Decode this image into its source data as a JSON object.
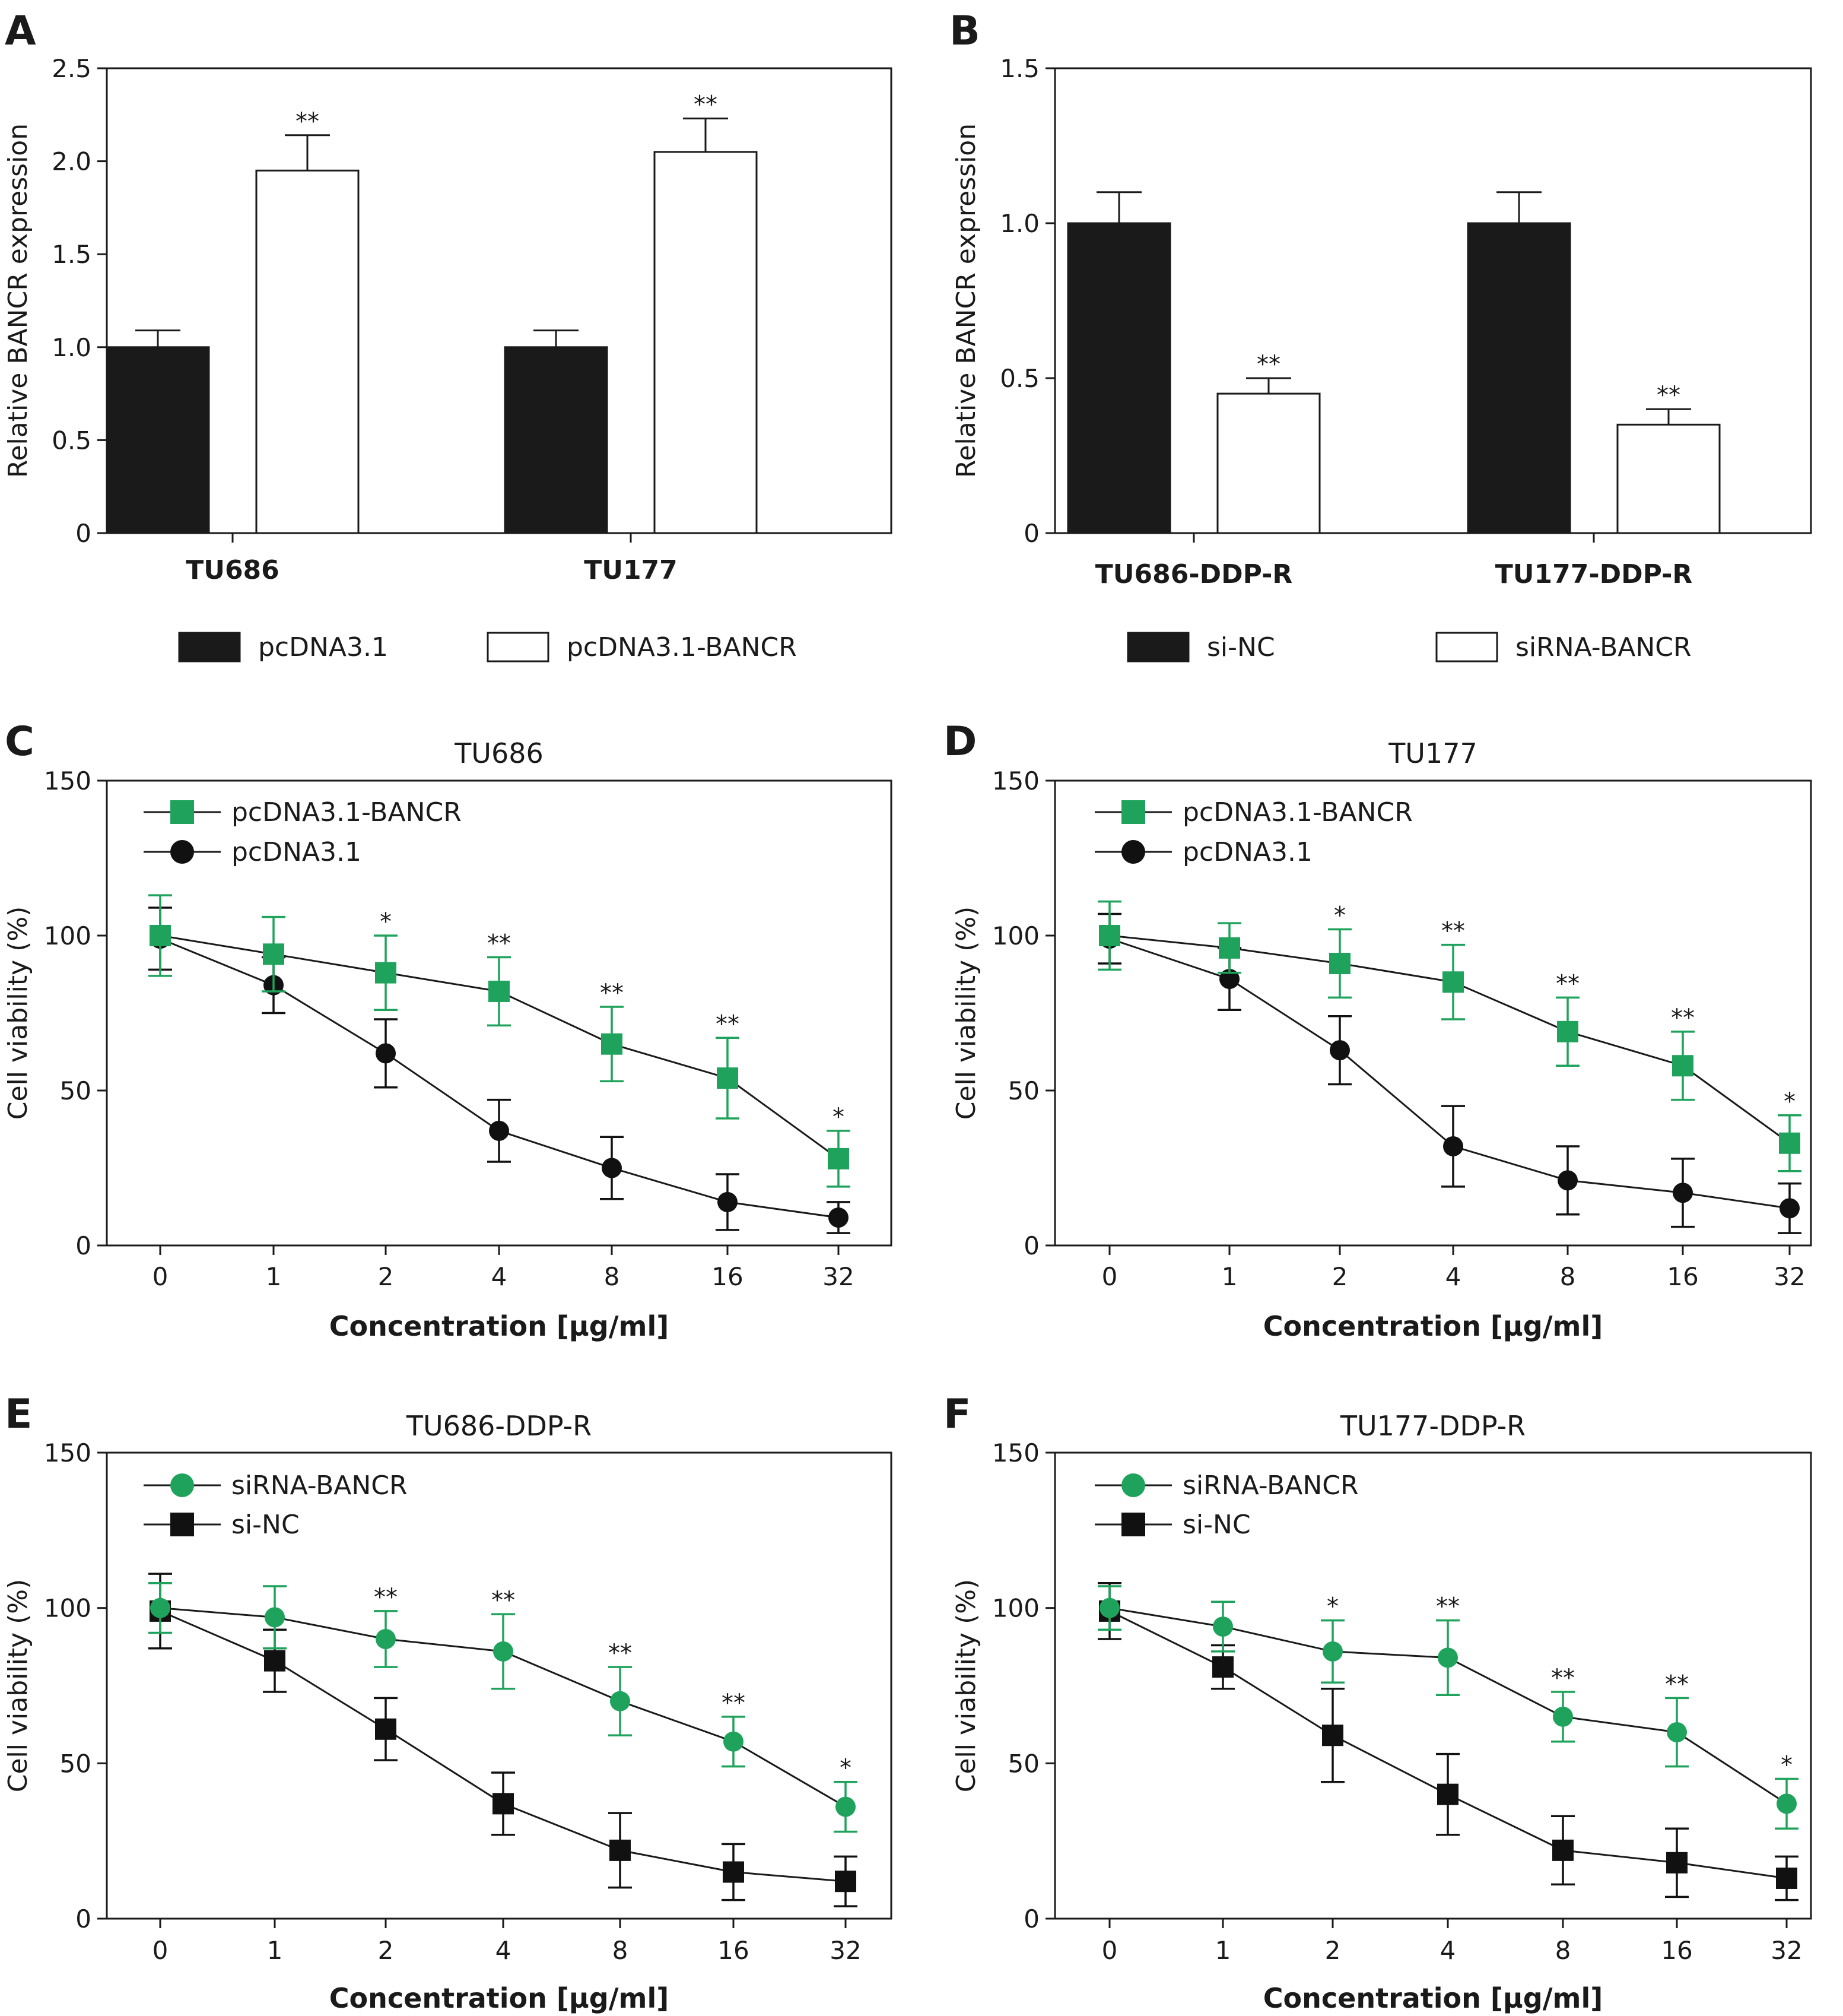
{
  "chart_data": [
    {
      "id": "A",
      "type": "bar",
      "panel_letter": "A",
      "title": "",
      "xlabel": "",
      "ylabel": "Relative BANCR expression",
      "ylim": [
        0,
        2.5
      ],
      "yticks": [
        0,
        0.5,
        1.0,
        1.5,
        2.0,
        2.5
      ],
      "ytick_labels": [
        "0",
        "0.5",
        "1.0",
        "1.5",
        "2.0",
        "2.5"
      ],
      "categories": [
        "TU686",
        "TU177"
      ],
      "series": [
        {
          "name": "pcDNA3.1",
          "color": "#1a1a1a",
          "values": [
            1.0,
            1.0
          ],
          "errors": [
            0.09,
            0.09
          ],
          "sig": [
            "",
            ""
          ]
        },
        {
          "name": "pcDNA3.1-BANCR",
          "color": "#ffffff",
          "values": [
            1.95,
            2.05
          ],
          "errors": [
            0.19,
            0.18
          ],
          "sig": [
            "**",
            "**"
          ]
        }
      ],
      "legend_position": "bottom"
    },
    {
      "id": "B",
      "type": "bar",
      "panel_letter": "B",
      "title": "",
      "xlabel": "",
      "ylabel": "Relative BANCR expression",
      "ylim": [
        0,
        1.5
      ],
      "yticks": [
        0,
        0.5,
        1.0,
        1.5
      ],
      "ytick_labels": [
        "0",
        "0.5",
        "1.0",
        "1.5"
      ],
      "categories": [
        "TU686-DDP-R",
        "TU177-DDP-R"
      ],
      "series": [
        {
          "name": "si-NC",
          "color": "#1a1a1a",
          "values": [
            1.0,
            1.0
          ],
          "errors": [
            0.1,
            0.1
          ],
          "sig": [
            "",
            ""
          ]
        },
        {
          "name": "siRNA-BANCR",
          "color": "#ffffff",
          "values": [
            0.45,
            0.35
          ],
          "errors": [
            0.05,
            0.05
          ],
          "sig": [
            "**",
            "**"
          ]
        }
      ],
      "legend_position": "bottom"
    },
    {
      "id": "C",
      "type": "line",
      "panel_letter": "C",
      "title": "TU686",
      "xlabel": "Concentration [μg/ml]",
      "ylabel": "Cell viability (%)",
      "ylim": [
        0,
        150
      ],
      "yticks": [
        0,
        50,
        100,
        150
      ],
      "x": [
        "0",
        "1",
        "2",
        "4",
        "8",
        "16",
        "32"
      ],
      "series": [
        {
          "name": "pcDNA3.1-BANCR",
          "marker": "square",
          "color": "#1fa35c",
          "values": [
            100,
            94,
            88,
            82,
            65,
            54,
            28
          ],
          "errors": [
            13,
            12,
            12,
            11,
            12,
            13,
            9
          ],
          "sig": [
            "",
            "",
            "*",
            "**",
            "**",
            "**",
            "*"
          ]
        },
        {
          "name": "pcDNA3.1",
          "marker": "circle",
          "color": "#111111",
          "values": [
            99,
            84,
            62,
            37,
            25,
            14,
            9
          ],
          "errors": [
            10,
            9,
            11,
            10,
            10,
            9,
            5
          ],
          "sig": [
            "",
            "",
            "",
            "",
            "",
            "",
            ""
          ]
        }
      ],
      "legend_position": "top-left"
    },
    {
      "id": "D",
      "type": "line",
      "panel_letter": "D",
      "title": "TU177",
      "xlabel": "Concentration [μg/ml]",
      "ylabel": "Cell viability (%)",
      "ylim": [
        0,
        150
      ],
      "yticks": [
        0,
        50,
        100,
        150
      ],
      "x": [
        "0",
        "1",
        "2",
        "4",
        "8",
        "16",
        "32"
      ],
      "series": [
        {
          "name": "pcDNA3.1-BANCR",
          "marker": "square",
          "color": "#1fa35c",
          "values": [
            100,
            96,
            91,
            85,
            69,
            58,
            33
          ],
          "errors": [
            11,
            8,
            11,
            12,
            11,
            11,
            9
          ],
          "sig": [
            "",
            "",
            "*",
            "**",
            "**",
            "**",
            "*"
          ]
        },
        {
          "name": "pcDNA3.1",
          "marker": "circle",
          "color": "#111111",
          "values": [
            99,
            86,
            63,
            32,
            21,
            17,
            12
          ],
          "errors": [
            8,
            10,
            11,
            13,
            11,
            11,
            8
          ],
          "sig": [
            "",
            "",
            "",
            "",
            "",
            "",
            ""
          ]
        }
      ],
      "legend_position": "top-left"
    },
    {
      "id": "E",
      "type": "line",
      "panel_letter": "E",
      "title": "TU686-DDP-R",
      "xlabel": "Concentration [μg/ml]",
      "ylabel": "Cell viability (%)",
      "ylim": [
        0,
        150
      ],
      "yticks": [
        0,
        50,
        100,
        150
      ],
      "x": [
        "0",
        "1",
        "2",
        "4",
        "8",
        "16",
        "32"
      ],
      "series": [
        {
          "name": "siRNA-BANCR",
          "marker": "circle",
          "color": "#1fa35c",
          "values": [
            100,
            97,
            90,
            86,
            70,
            57,
            36
          ],
          "errors": [
            8,
            10,
            9,
            12,
            11,
            8,
            8
          ],
          "sig": [
            "",
            "",
            "**",
            "**",
            "**",
            "**",
            "*"
          ]
        },
        {
          "name": "si-NC",
          "marker": "square",
          "color": "#111111",
          "values": [
            99,
            83,
            61,
            37,
            22,
            15,
            12
          ],
          "errors": [
            12,
            10,
            10,
            10,
            12,
            9,
            8
          ],
          "sig": [
            "",
            "",
            "",
            "",
            "",
            "",
            ""
          ]
        }
      ],
      "legend_position": "top-left"
    },
    {
      "id": "F",
      "type": "line",
      "panel_letter": "F",
      "title": "TU177-DDP-R",
      "xlabel": "Concentration [μg/ml]",
      "ylabel": "Cell viability (%)",
      "ylim": [
        0,
        150
      ],
      "yticks": [
        0,
        50,
        100,
        150
      ],
      "x": [
        "0",
        "1",
        "2",
        "4",
        "8",
        "16",
        "32"
      ],
      "series": [
        {
          "name": "siRNA-BANCR",
          "marker": "circle",
          "color": "#1fa35c",
          "values": [
            100,
            94,
            86,
            84,
            65,
            60,
            37
          ],
          "errors": [
            7,
            8,
            10,
            12,
            8,
            11,
            8
          ],
          "sig": [
            "",
            "",
            "*",
            "**",
            "**",
            "**",
            "*"
          ]
        },
        {
          "name": "si-NC",
          "marker": "square",
          "color": "#111111",
          "values": [
            99,
            81,
            59,
            40,
            22,
            18,
            13
          ],
          "errors": [
            9,
            7,
            15,
            13,
            11,
            11,
            7
          ],
          "sig": [
            "",
            "",
            "",
            "",
            "",
            "",
            ""
          ]
        }
      ],
      "legend_position": "top-left"
    }
  ]
}
